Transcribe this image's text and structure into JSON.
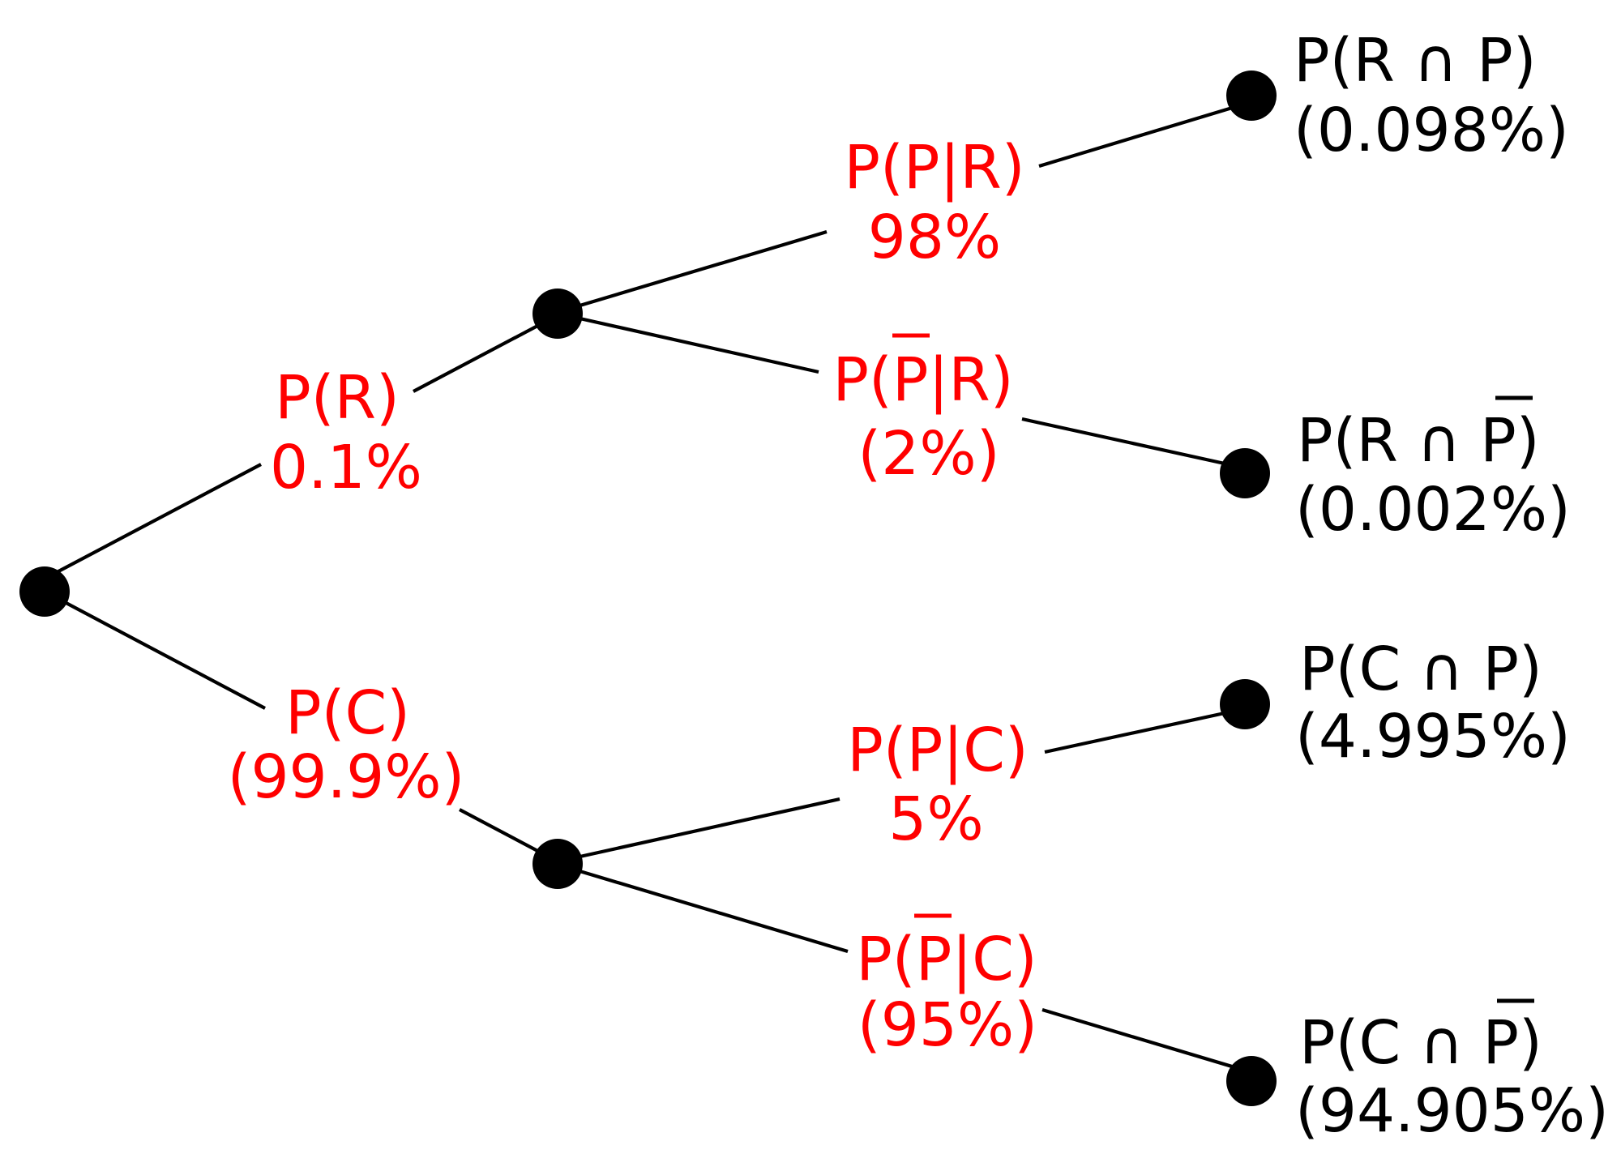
{
  "colors": {
    "branch_label": "#ff0000",
    "outcome_label": "#000000",
    "edges": "#000000",
    "nodes": "#000000"
  },
  "branches": {
    "r": {
      "name": "P(R)",
      "value": "0.1%"
    },
    "c": {
      "name": "P(C)",
      "value": "(99.9%)"
    },
    "p_given_r": {
      "name": "P(P|R)",
      "value": "98%"
    },
    "notp_given_r": {
      "name_prefix": "P(",
      "name_bar": "P",
      "name_suffix": "|R)",
      "value": "(2%)"
    },
    "p_given_c": {
      "name": "P(P|C)",
      "value": "5%"
    },
    "notp_given_c": {
      "name_prefix": "P(",
      "name_bar": "P",
      "name_suffix": "|C)",
      "value": "(95%)"
    }
  },
  "outcomes": {
    "r_and_p": {
      "name": "P(R ∩ P)",
      "value": "(0.098%)"
    },
    "r_and_notp": {
      "name_prefix": "P(R ∩ ",
      "name_bar": "P",
      "name_suffix": ")",
      "value": "(0.002%)"
    },
    "c_and_p": {
      "name": "P(C ∩ P)",
      "value": "(4.995%)"
    },
    "c_and_notp": {
      "name_prefix": "P(C ∩ ",
      "name_bar": "P",
      "name_suffix": ")",
      "value": "(94.905%)"
    }
  }
}
